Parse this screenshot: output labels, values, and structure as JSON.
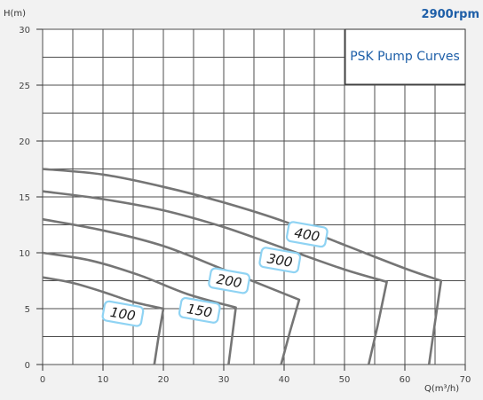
{
  "chart_data": {
    "type": "line",
    "title": "PSK Pump Curves",
    "speed_label": "2900rpm",
    "xlabel": "Q(m³/h)",
    "ylabel": "H(m)",
    "xlim": [
      0,
      70
    ],
    "ylim": [
      0,
      30
    ],
    "x_ticks": [
      0,
      10,
      20,
      30,
      40,
      50,
      60,
      70
    ],
    "y_ticks": [
      0,
      5,
      10,
      15,
      20,
      25,
      30
    ],
    "grid": true,
    "series": [
      {
        "name": "100",
        "points": [
          [
            0,
            7.8
          ],
          [
            5,
            7.3
          ],
          [
            10,
            6.5
          ],
          [
            15,
            5.6
          ],
          [
            20,
            5.0
          ],
          [
            19.2,
            2.5
          ],
          [
            18.5,
            0
          ]
        ]
      },
      {
        "name": "150",
        "points": [
          [
            0,
            10.0
          ],
          [
            8,
            9.3
          ],
          [
            16,
            8.0
          ],
          [
            24,
            6.3
          ],
          [
            32,
            5.1
          ],
          [
            31.4,
            2.5
          ],
          [
            30.8,
            0
          ]
        ]
      },
      {
        "name": "200",
        "points": [
          [
            0,
            13.0
          ],
          [
            10,
            12.0
          ],
          [
            20,
            10.6
          ],
          [
            30,
            8.5
          ],
          [
            42.5,
            5.8
          ],
          [
            41,
            3
          ],
          [
            39.5,
            0
          ]
        ]
      },
      {
        "name": "300",
        "points": [
          [
            0,
            15.5
          ],
          [
            10,
            14.8
          ],
          [
            20,
            13.8
          ],
          [
            30,
            12.3
          ],
          [
            40,
            10.4
          ],
          [
            50,
            8.5
          ],
          [
            57,
            7.4
          ],
          [
            55.5,
            3.5
          ],
          [
            54,
            0
          ]
        ]
      },
      {
        "name": "400",
        "points": [
          [
            0,
            17.5
          ],
          [
            10,
            17.0
          ],
          [
            20,
            15.9
          ],
          [
            30,
            14.5
          ],
          [
            40,
            12.8
          ],
          [
            50,
            10.7
          ],
          [
            60,
            8.6
          ],
          [
            66,
            7.5
          ],
          [
            65,
            3.8
          ],
          [
            64,
            0
          ]
        ]
      }
    ],
    "curve_labels": [
      {
        "text": "100",
        "x": 13.3,
        "y": 4.55
      },
      {
        "text": "150",
        "x": 26,
        "y": 4.85
      },
      {
        "text": "200",
        "x": 30.9,
        "y": 7.5
      },
      {
        "text": "300",
        "x": 39.3,
        "y": 9.35
      },
      {
        "text": "400",
        "x": 43.8,
        "y": 11.65
      }
    ],
    "colors": {
      "grid": "#4d4d4d",
      "curve": "#757575",
      "label_box_border": "#8fd3f3",
      "label_box_fill": "#ffffff",
      "title": "#1e5fa8"
    }
  }
}
